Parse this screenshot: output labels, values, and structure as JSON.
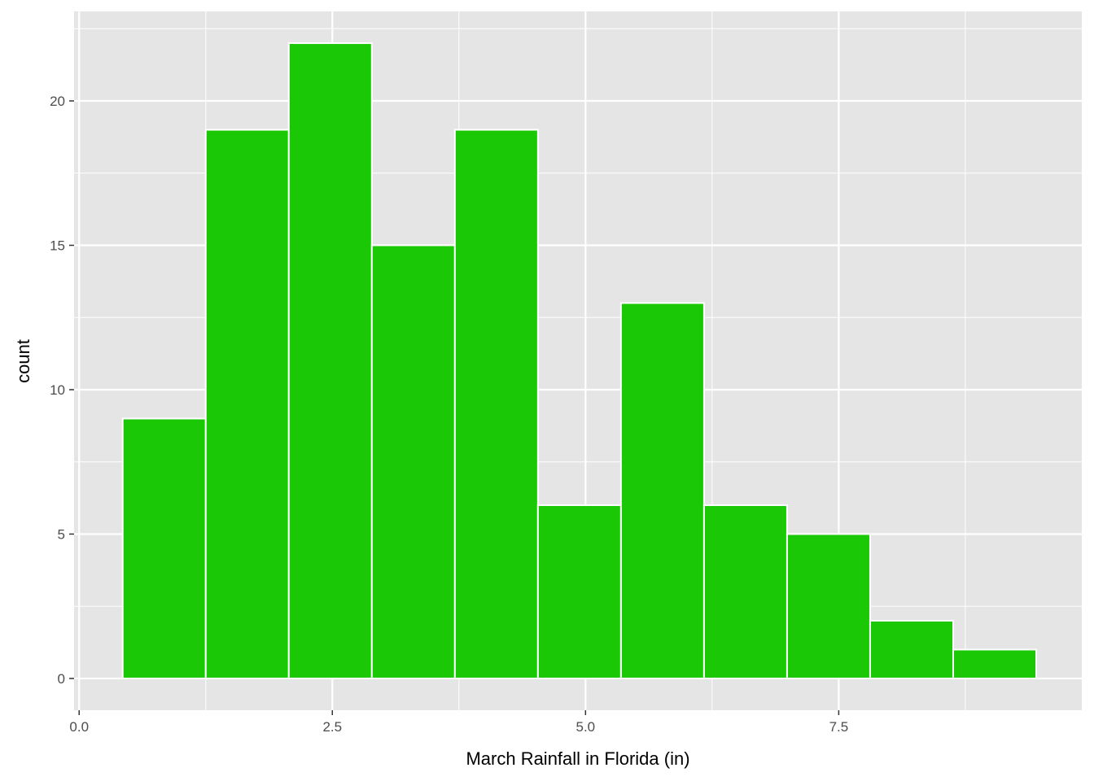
{
  "chart_data": {
    "type": "bar",
    "subtype": "histogram",
    "title": "",
    "xlabel": "March Rainfall in Florida (in)",
    "ylabel": "count",
    "bin_edges": [
      0.43,
      1.25,
      2.07,
      2.89,
      3.71,
      4.53,
      5.35,
      6.17,
      6.99,
      7.81,
      8.63,
      9.45
    ],
    "values": [
      9,
      19,
      22,
      15,
      19,
      6,
      13,
      6,
      5,
      2,
      1
    ],
    "xlim": [
      -0.05,
      9.9
    ],
    "ylim": [
      -1.1,
      23.1
    ],
    "x_ticks": [
      0.0,
      2.5,
      5.0,
      7.5
    ],
    "x_tick_labels": [
      "0.0",
      "2.5",
      "5.0",
      "7.5"
    ],
    "y_ticks": [
      0,
      5,
      10,
      15,
      20
    ],
    "y_tick_labels": [
      "0",
      "5",
      "10",
      "15",
      "20"
    ],
    "grid": true,
    "legend": "none",
    "bar_fill": "#1ac805",
    "bar_outline": "#ffffff",
    "panel_background": "#e5e5e5",
    "grid_color": "#ffffff"
  }
}
